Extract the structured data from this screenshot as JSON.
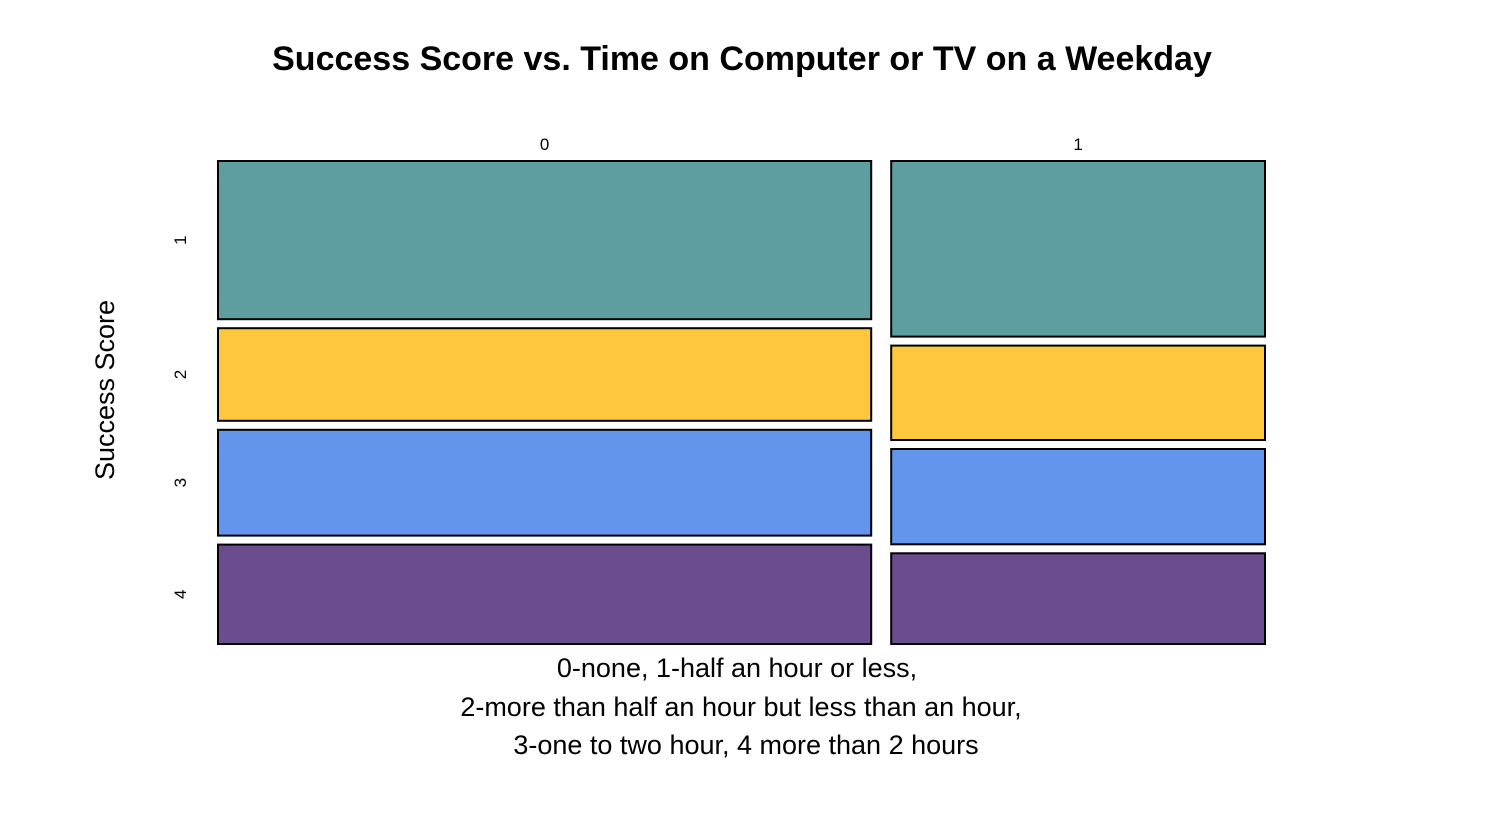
{
  "chart_data": {
    "type": "mosaic",
    "title": "Success Score vs. Time on Computer or TV on a Weekday",
    "xlabel_lines": [
      "0-none, 1-half an hour or less,",
      "2-more than half an hour but less than an hour,",
      "3-one to two hour, 4 more than 2 hours"
    ],
    "ylabel": "Success Score",
    "column_categories": [
      "0",
      "1"
    ],
    "column_proportions": [
      0.636,
      0.364
    ],
    "row_categories": [
      "1",
      "2",
      "3",
      "4"
    ],
    "colors": [
      "#5F9EA0",
      "#FFC83C",
      "#6495ED",
      "#6A4C8F"
    ],
    "cells": [
      {
        "column": "0",
        "proportions": [
          0.347,
          0.203,
          0.232,
          0.218
        ]
      },
      {
        "column": "1",
        "proportions": [
          0.385,
          0.207,
          0.209,
          0.199
        ]
      }
    ]
  }
}
